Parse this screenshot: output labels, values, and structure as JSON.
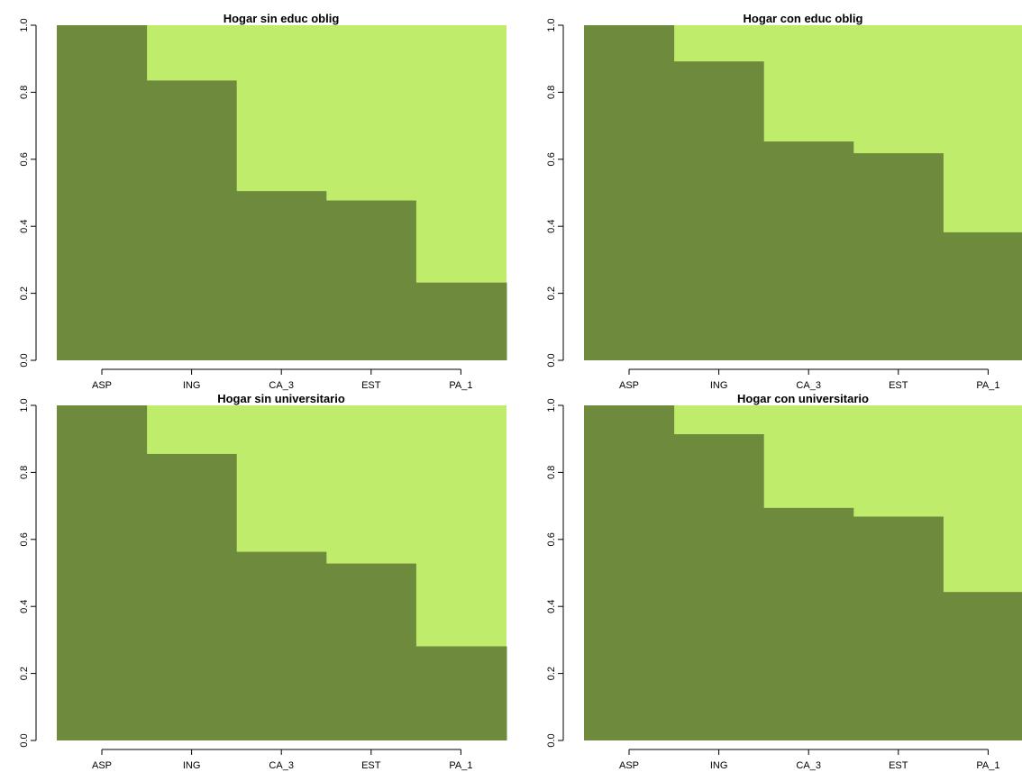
{
  "colors": {
    "lower": "#6e8a3c",
    "upper": "#c0ec6c",
    "background": "#ffffff"
  },
  "chart_data": [
    {
      "type": "bar",
      "title": "Hogar sin educ oblig",
      "categories": [
        "ASP",
        "ING",
        "CA_3",
        "EST",
        "PA_1"
      ],
      "values": [
        1.0,
        0.835,
        0.505,
        0.477,
        0.232
      ],
      "ylim": [
        0,
        1
      ],
      "yticks": [
        "0.0",
        "0.2",
        "0.4",
        "0.6",
        "0.8",
        "1.0"
      ],
      "xlabel": "",
      "ylabel": "",
      "grid": false
    },
    {
      "type": "bar",
      "title": "Hogar con educ oblig",
      "categories": [
        "ASP",
        "ING",
        "CA_3",
        "EST",
        "PA_1"
      ],
      "values": [
        1.0,
        0.892,
        0.653,
        0.618,
        0.382
      ],
      "ylim": [
        0,
        1
      ],
      "yticks": [
        "0.0",
        "0.2",
        "0.4",
        "0.6",
        "0.8",
        "1.0"
      ],
      "xlabel": "",
      "ylabel": "",
      "grid": false
    },
    {
      "type": "bar",
      "title": "Hogar sin universitario",
      "categories": [
        "ASP",
        "ING",
        "CA_3",
        "EST",
        "PA_1"
      ],
      "values": [
        1.0,
        0.855,
        0.563,
        0.528,
        0.281
      ],
      "ylim": [
        0,
        1
      ],
      "yticks": [
        "0.0",
        "0.2",
        "0.4",
        "0.6",
        "0.8",
        "1.0"
      ],
      "xlabel": "",
      "ylabel": "",
      "grid": false
    },
    {
      "type": "bar",
      "title": "Hogar con universitario",
      "categories": [
        "ASP",
        "ING",
        "CA_3",
        "EST",
        "PA_1"
      ],
      "values": [
        1.0,
        0.914,
        0.694,
        0.668,
        0.443
      ],
      "ylim": [
        0,
        1
      ],
      "yticks": [
        "0.0",
        "0.2",
        "0.4",
        "0.6",
        "0.8",
        "1.0"
      ],
      "xlabel": "",
      "ylabel": "",
      "grid": false
    }
  ]
}
